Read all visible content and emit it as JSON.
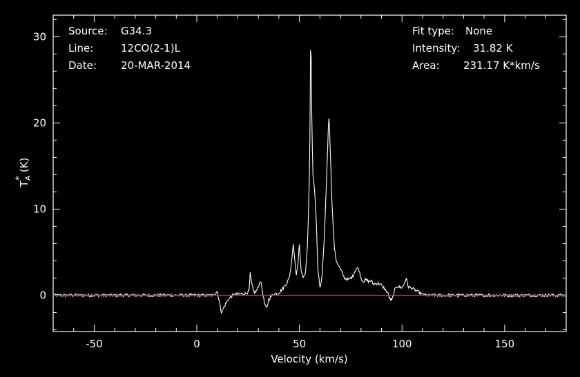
{
  "header_left": {
    "source_label": "Source:",
    "source_value": "G34.3",
    "line_label": "Line:",
    "line_value": "12CO(2-1)L",
    "date_label": "Date:",
    "date_value": "20-MAR-2014"
  },
  "header_right": {
    "fit_label": "Fit type:",
    "fit_value": "None",
    "intensity_label": "Intensity:",
    "intensity_value": "31.82 K",
    "area_label": "Area:",
    "area_value": "231.17 K*km/s"
  },
  "colors": {
    "background": "#000000",
    "trace": "#ffffff",
    "baseline": "#ff2020",
    "axes": "#ffffff"
  },
  "chart_data": {
    "type": "line",
    "xlabel": "Velocity (km/s)",
    "ylabel": "T",
    "ylabel_sub": "A",
    "ylabel_sup": "*",
    "ylabel_unit": "(K)",
    "xlim": [
      -70,
      180
    ],
    "ylim": [
      -4.2,
      32.5
    ],
    "xticks": [
      -50,
      0,
      50,
      100,
      150
    ],
    "yticks": [
      0,
      10,
      20,
      30
    ],
    "grid": false,
    "baseline_y": 0,
    "series": [
      {
        "x": [
          -70,
          0,
          8,
          10,
          11,
          12,
          13,
          14,
          16,
          18,
          24,
          25.5,
          26,
          27,
          28,
          29,
          30,
          31,
          32,
          33,
          34,
          35,
          37,
          40,
          42,
          44,
          45,
          46,
          47,
          48,
          48.5,
          49,
          50,
          51,
          52,
          53,
          54,
          55,
          55.5,
          56,
          56.5,
          57,
          58,
          59,
          60,
          61,
          62,
          63,
          64,
          64.5,
          65,
          66,
          67,
          68,
          69,
          70,
          72,
          74,
          76,
          77,
          78,
          79,
          80,
          81,
          82,
          84,
          85,
          86,
          88,
          90,
          92,
          93,
          94,
          95,
          96,
          97,
          98,
          100,
          101,
          102,
          103,
          105,
          108,
          110,
          112,
          120,
          180
        ],
        "y": [
          0,
          0,
          0,
          0.5,
          -0.8,
          -2.0,
          -1.5,
          -1.0,
          -0.3,
          0.1,
          0.2,
          0.5,
          2.5,
          1.0,
          0.3,
          0.5,
          1.0,
          1.8,
          0.5,
          -1.0,
          -1.6,
          -0.5,
          0.1,
          0.3,
          0.8,
          1.5,
          2.0,
          3.5,
          6.0,
          3.5,
          2.5,
          3.0,
          5.8,
          2.5,
          2.0,
          2.8,
          6.0,
          15.0,
          31.8,
          21.0,
          14.0,
          13.5,
          10.0,
          3.0,
          0.8,
          2.0,
          6.0,
          12.0,
          19.0,
          21.0,
          17.0,
          10.0,
          5.5,
          4.0,
          3.5,
          3.0,
          2.0,
          1.8,
          2.2,
          2.8,
          3.2,
          3.0,
          2.0,
          1.6,
          1.8,
          1.6,
          1.7,
          1.3,
          1.4,
          1.2,
          0.6,
          0.3,
          -0.4,
          -0.6,
          0.2,
          1.0,
          1.0,
          0.9,
          1.3,
          2.0,
          1.0,
          0.8,
          0.4,
          0.1,
          0,
          0,
          0
        ]
      }
    ]
  }
}
